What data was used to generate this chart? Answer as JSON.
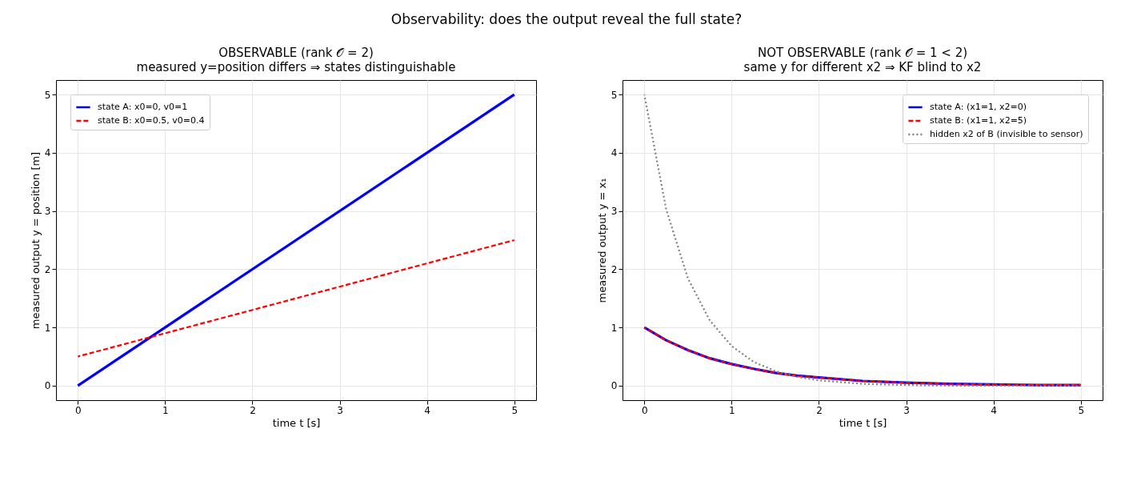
{
  "chart_data": [
    {
      "type": "line",
      "title": "OBSERVABLE  (rank 𝒪 = 2)",
      "subtitle": "measured y=position differs ⇒ states distinguishable",
      "annotations": [
        "Observability: does the output reveal the full state?"
      ],
      "xlabel": "time t [s]",
      "ylabel": "measured output  y = position [m]",
      "x": [
        0,
        5
      ],
      "series": [
        {
          "name": "state A: x0=0, v0=1",
          "color": "#0000ff",
          "line_style": "solid",
          "values": [
            0,
            5
          ]
        },
        {
          "name": "state B: x0=0.5, v0=0.4",
          "color": "#ff0000",
          "line_style": "dashed",
          "values": [
            0.5,
            2.5
          ]
        }
      ],
      "xlim": [
        -0.25,
        5.25
      ],
      "ylim": [
        -0.25,
        5.25
      ],
      "xticks": [
        0,
        1,
        2,
        3,
        4,
        5
      ],
      "yticks": [
        0,
        1,
        2,
        3,
        4,
        5
      ],
      "grid": true,
      "legend": "top left"
    },
    {
      "type": "line",
      "title": "NOT OBSERVABLE  (rank 𝒪 = 1 < 2)",
      "subtitle": "same y for different x2 ⇒ KF blind to x2",
      "xlabel": "time t [s]",
      "ylabel": "measured output  y = x₁",
      "x": [
        0,
        0.25,
        0.5,
        0.75,
        1,
        1.25,
        1.5,
        1.75,
        2,
        2.5,
        3,
        3.5,
        4,
        4.5,
        5
      ],
      "series": [
        {
          "name": "state A: (x1=1, x2=0)",
          "color": "#0000ff",
          "line_style": "solid",
          "values": [
            1,
            0.78,
            0.61,
            0.47,
            0.37,
            0.29,
            0.22,
            0.17,
            0.14,
            0.08,
            0.05,
            0.03,
            0.02,
            0.01,
            0.01
          ]
        },
        {
          "name": "state B: (x1=1, x2=5)",
          "color": "#ff0000",
          "line_style": "dashed",
          "values": [
            1,
            0.78,
            0.61,
            0.47,
            0.37,
            0.29,
            0.22,
            0.17,
            0.14,
            0.08,
            0.05,
            0.03,
            0.02,
            0.01,
            0.01
          ]
        },
        {
          "name": "hidden x2 of B (invisible to sensor)",
          "color": "#808080",
          "line_style": "dotted",
          "values": [
            5,
            3.03,
            1.84,
            1.12,
            0.68,
            0.41,
            0.25,
            0.15,
            0.09,
            0.03,
            0.01,
            0,
            0,
            0,
            0
          ]
        }
      ],
      "xlim": [
        -0.25,
        5.25
      ],
      "ylim": [
        -0.25,
        5.25
      ],
      "xticks": [
        0,
        1,
        2,
        3,
        4,
        5
      ],
      "yticks": [
        0,
        1,
        2,
        3,
        4,
        5
      ],
      "grid": true,
      "legend": "top right"
    }
  ]
}
